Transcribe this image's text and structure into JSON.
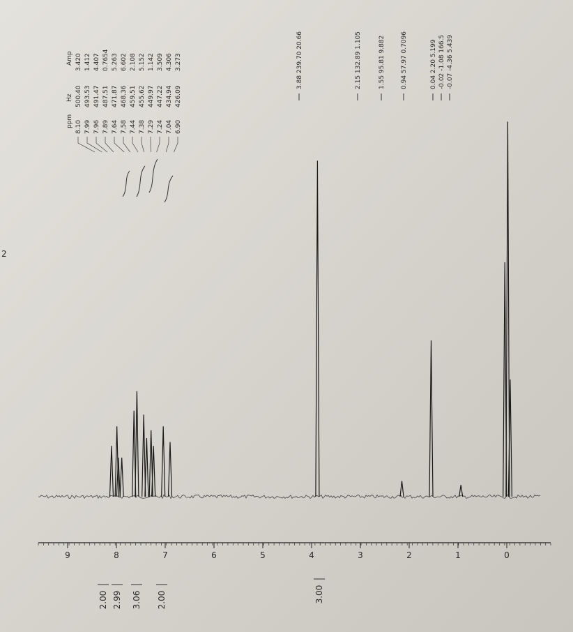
{
  "page_marker": "2",
  "chart_data": {
    "type": "nmr",
    "peak_table": {
      "columns": [
        "ppm",
        "Hz",
        "Amp"
      ],
      "rows": [
        [
          "8.10",
          "500.40",
          "3.420"
        ],
        [
          "7.99",
          "493.53",
          "1.412"
        ],
        [
          "7.96",
          "491.47",
          "4.407"
        ],
        [
          "7.89",
          "487.51",
          "0.7654"
        ],
        [
          "7.64",
          "471.87",
          "5.263"
        ],
        [
          "7.58",
          "468.36",
          "6.602"
        ],
        [
          "7.44",
          "459.51",
          "2.108"
        ],
        [
          "7.38",
          "455.62",
          "5.152"
        ],
        [
          "7.29",
          "449.97",
          "1.142"
        ],
        [
          "7.24",
          "447.22",
          "3.509"
        ],
        [
          "7.04",
          "434.94",
          "4.306"
        ],
        [
          "6.90",
          "426.09",
          "3.273"
        ]
      ]
    },
    "peak_annotations": [
      "3.88 239.70 20.66",
      "2.15 132.89 1.105",
      "1.55 95.81 9.882",
      "0.94 57.97 0.7096",
      "0.04 2.20 5.199",
      "-0.02 -1.08 166.5",
      "-0.07 -4.36 5.439"
    ],
    "integrals": [
      "2.00",
      "2.99",
      "3.06",
      "2.00",
      "3.00"
    ],
    "x": [
      8.1,
      7.99,
      7.96,
      7.89,
      7.64,
      7.58,
      7.44,
      7.38,
      7.29,
      7.24,
      7.04,
      6.9,
      3.88,
      2.15,
      1.55,
      0.94,
      0.04,
      -0.02,
      -0.07
    ],
    "values": [
      13,
      18,
      10,
      10,
      22,
      27,
      21,
      15,
      17,
      13,
      18,
      14,
      86,
      4,
      40,
      3,
      60,
      96,
      30
    ],
    "color": "#1a1a1a",
    "xlim": [
      9.6,
      -0.9
    ],
    "ylim": [
      0,
      100
    ],
    "xticks": [
      9,
      8,
      7,
      6,
      5,
      4,
      3,
      2,
      1,
      0
    ]
  }
}
